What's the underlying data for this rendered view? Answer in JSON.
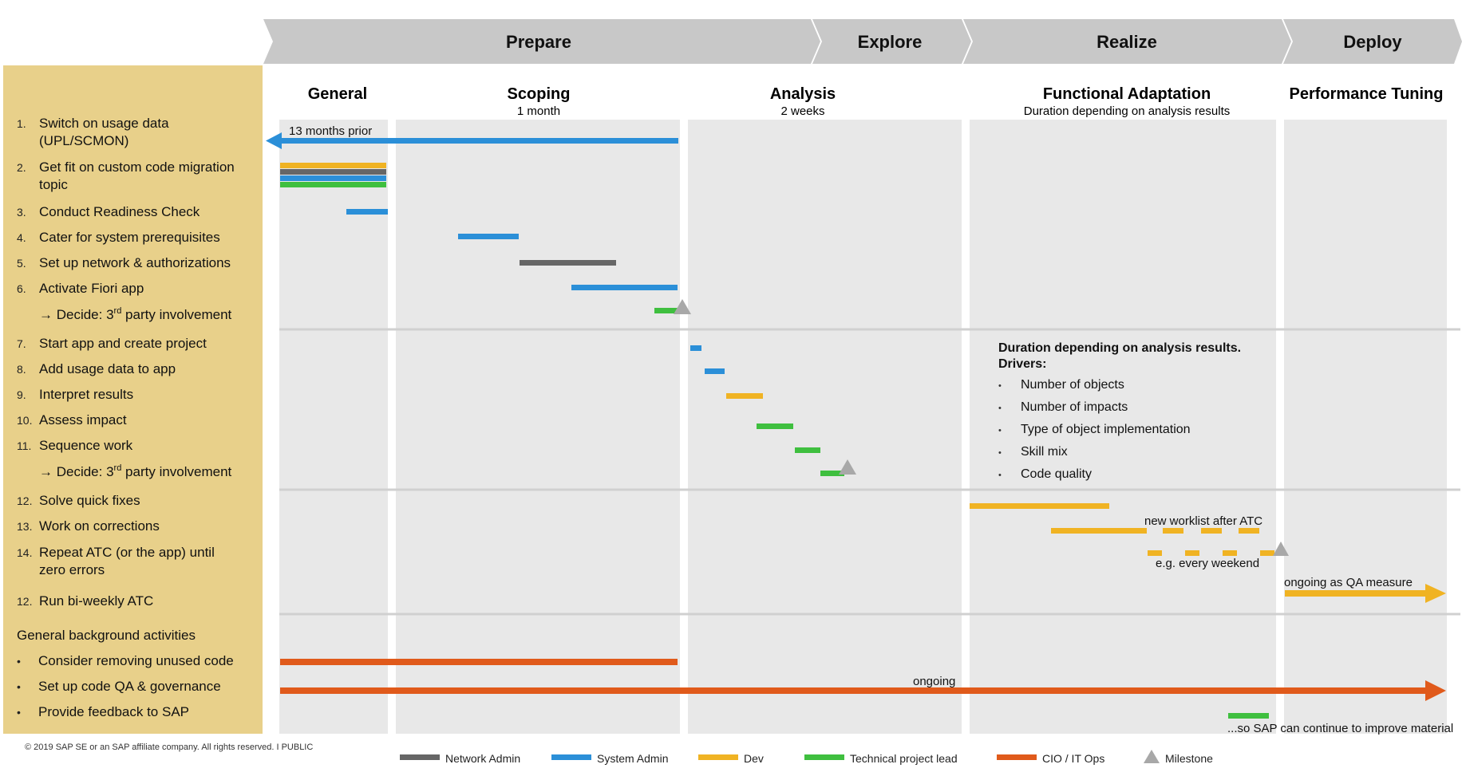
{
  "colors": {
    "network_admin": "#666666",
    "system_admin": "#2b8fd8",
    "dev": "#f0b323",
    "tech_lead": "#3fbf3f",
    "cio_it_ops": "#e05a1b",
    "milestone": "#a8a8a8",
    "sidebar": "#e8d08a",
    "phase_banner": "#c8c8c8",
    "column_bg": "#e8e8e8"
  },
  "phases": [
    {
      "key": "prepare",
      "label": "Prepare"
    },
    {
      "key": "explore",
      "label": "Explore"
    },
    {
      "key": "realize",
      "label": "Realize"
    },
    {
      "key": "deploy",
      "label": "Deploy"
    }
  ],
  "columns": [
    {
      "key": "general",
      "title": "General",
      "subtitle": ""
    },
    {
      "key": "scoping",
      "title": "Scoping",
      "subtitle": "1 month"
    },
    {
      "key": "analysis",
      "title": "Analysis",
      "subtitle": "2 weeks"
    },
    {
      "key": "functional",
      "title": "Functional Adaptation",
      "subtitle": "Duration depending on analysis results"
    },
    {
      "key": "performance",
      "title": "Performance Tuning",
      "subtitle": ""
    }
  ],
  "tasks": [
    {
      "num": "1.",
      "lines": [
        "Switch on usage data",
        "(UPL/SCMON)"
      ]
    },
    {
      "num": "2.",
      "lines": [
        "Get fit on custom code migration",
        "topic"
      ]
    },
    {
      "num": "3.",
      "lines": [
        "Conduct Readiness Check"
      ]
    },
    {
      "num": "4.",
      "lines": [
        "Cater for system prerequisites"
      ]
    },
    {
      "num": "5.",
      "lines": [
        "Set up network & authorizations"
      ]
    },
    {
      "num": "6.",
      "lines": [
        "Activate Fiori app"
      ]
    },
    {
      "num": "",
      "decide": true,
      "lines": [
        "→ Decide: 3",
        "rd",
        " party involvement"
      ]
    },
    {
      "num": "7.",
      "lines": [
        "Start app and create project"
      ]
    },
    {
      "num": "8.",
      "lines": [
        "Add usage data to app"
      ]
    },
    {
      "num": "9.",
      "lines": [
        "Interpret results"
      ]
    },
    {
      "num": "10.",
      "lines": [
        "Assess impact"
      ]
    },
    {
      "num": "11.",
      "lines": [
        "Sequence work"
      ]
    },
    {
      "num": "",
      "decide": true,
      "lines": [
        "→ Decide: 3",
        "rd",
        " party involvement"
      ]
    },
    {
      "num": "12.",
      "lines": [
        "Solve quick fixes"
      ]
    },
    {
      "num": "13.",
      "lines": [
        "Work on corrections"
      ]
    },
    {
      "num": "14.",
      "lines": [
        "Repeat ATC (or the app) until",
        "zero errors"
      ]
    },
    {
      "num": "12.",
      "lines": [
        "Run bi-weekly ATC"
      ]
    }
  ],
  "background": {
    "heading": "General background activities",
    "items": [
      "Consider removing unused code",
      "Set up code QA & governance",
      "Provide feedback to SAP"
    ]
  },
  "annotations": {
    "months_prior": "13 months prior",
    "drivers_title_1": "Duration depending on analysis results.",
    "drivers_title_2": "Drivers:",
    "drivers": [
      "Number of objects",
      "Number of impacts",
      "Type of object implementation",
      "Skill mix",
      "Code quality"
    ],
    "new_worklist": "new worklist after ATC",
    "every_weekend": "e.g. every weekend",
    "ongoing_qa": "ongoing as QA measure",
    "ongoing": "ongoing",
    "so_sap": "...so SAP can continue to improve material"
  },
  "footer": {
    "copyright": "© 2019 SAP SE or an SAP affiliate company. All rights reserved.  I  PUBLIC"
  },
  "legend": [
    {
      "label": "Network Admin",
      "color_key": "network_admin",
      "kind": "bar"
    },
    {
      "label": "System Admin",
      "color_key": "system_admin",
      "kind": "bar"
    },
    {
      "label": "Dev",
      "color_key": "dev",
      "kind": "bar"
    },
    {
      "label": "Technical project lead",
      "color_key": "tech_lead",
      "kind": "bar"
    },
    {
      "label": "CIO / IT Ops",
      "color_key": "cio_it_ops",
      "kind": "bar"
    },
    {
      "label": "Milestone",
      "color_key": "milestone",
      "kind": "triangle"
    }
  ],
  "bars": [
    {
      "task": "1",
      "role": "system_admin"
    },
    {
      "task": "2",
      "role": "dev"
    },
    {
      "task": "2",
      "role": "network_admin"
    },
    {
      "task": "2",
      "role": "system_admin"
    },
    {
      "task": "2",
      "role": "tech_lead"
    },
    {
      "task": "3",
      "role": "system_admin"
    },
    {
      "task": "4",
      "role": "system_admin"
    },
    {
      "task": "5",
      "role": "network_admin"
    },
    {
      "task": "6",
      "role": "system_admin"
    },
    {
      "task": "decide-1",
      "role": "tech_lead"
    },
    {
      "task": "7",
      "role": "system_admin"
    },
    {
      "task": "8",
      "role": "system_admin"
    },
    {
      "task": "9",
      "role": "dev"
    },
    {
      "task": "10",
      "role": "tech_lead"
    },
    {
      "task": "11",
      "role": "tech_lead"
    },
    {
      "task": "decide-2",
      "role": "tech_lead"
    },
    {
      "task": "12",
      "role": "dev"
    },
    {
      "task": "13",
      "role": "dev"
    },
    {
      "task": "14",
      "role": "dev"
    },
    {
      "task": "12-atc",
      "role": "dev"
    },
    {
      "task": "bg-1",
      "role": "cio_it_ops"
    },
    {
      "task": "bg-2",
      "role": "cio_it_ops"
    },
    {
      "task": "bg-3",
      "role": "tech_lead"
    }
  ]
}
